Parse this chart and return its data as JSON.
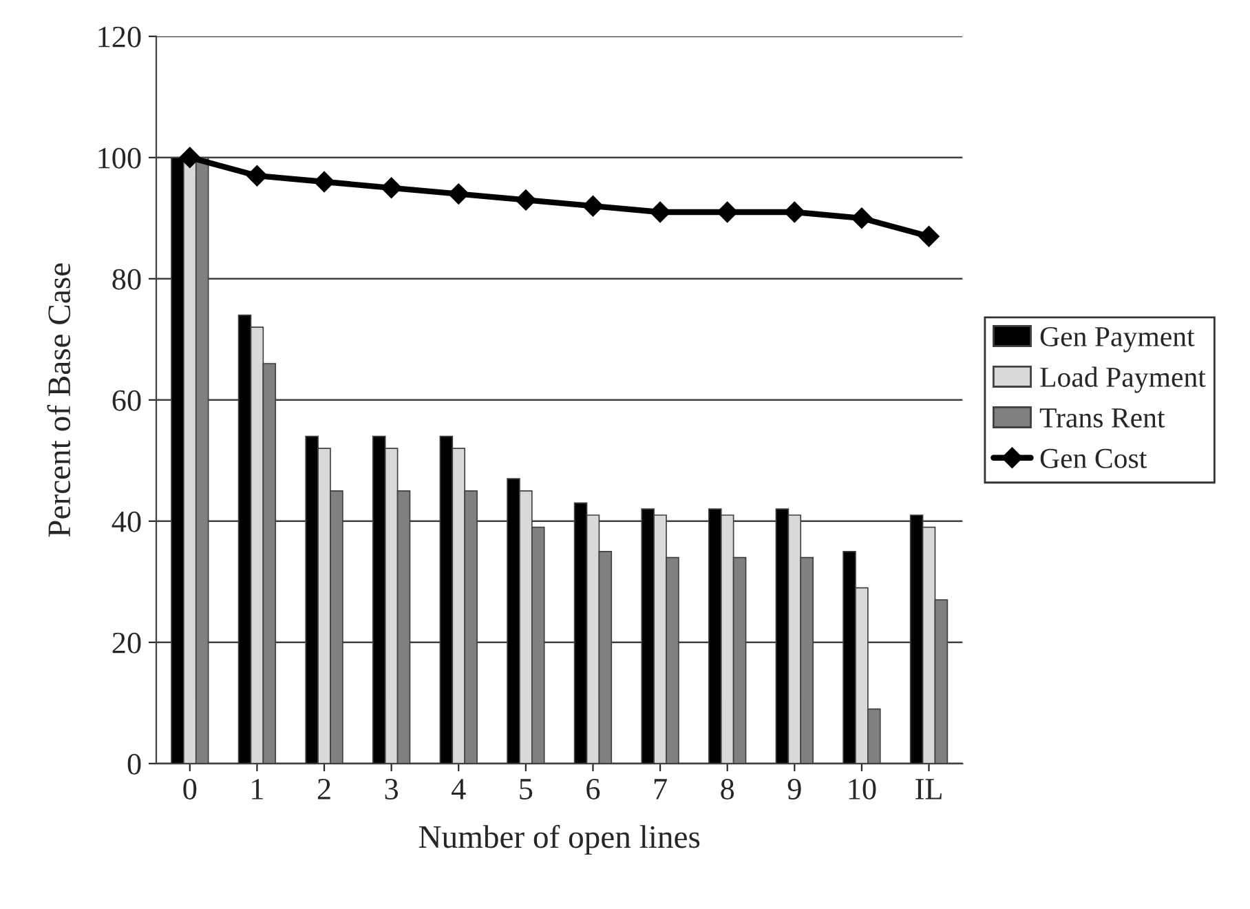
{
  "chart_data": {
    "type": "bar",
    "xlabel": "Number of open lines",
    "ylabel": "Percent of Base Case",
    "categories": [
      "0",
      "1",
      "2",
      "3",
      "4",
      "5",
      "6",
      "7",
      "8",
      "9",
      "10",
      "IL"
    ],
    "series": [
      {
        "name": "Gen Payment",
        "color": "#000000",
        "values": [
          100,
          74,
          54,
          54,
          54,
          47,
          43,
          42,
          42,
          42,
          35,
          41
        ]
      },
      {
        "name": "Load Payment",
        "color": "#d9d9d9",
        "values": [
          100,
          72,
          52,
          52,
          52,
          45,
          41,
          41,
          41,
          41,
          29,
          39
        ]
      },
      {
        "name": "Trans Rent",
        "color": "#808080",
        "values": [
          100,
          66,
          45,
          45,
          45,
          39,
          35,
          34,
          34,
          34,
          9,
          27
        ]
      },
      {
        "name": "Gen Cost",
        "type": "line",
        "color": "#000000",
        "marker": "diamond",
        "values": [
          100,
          97,
          96,
          95,
          94,
          93,
          92,
          91,
          91,
          91,
          90,
          87
        ]
      }
    ],
    "ylim": [
      0,
      120
    ],
    "yticks": [
      0,
      20,
      40,
      60,
      80,
      100,
      120
    ],
    "grid": "y",
    "legend": "right"
  }
}
